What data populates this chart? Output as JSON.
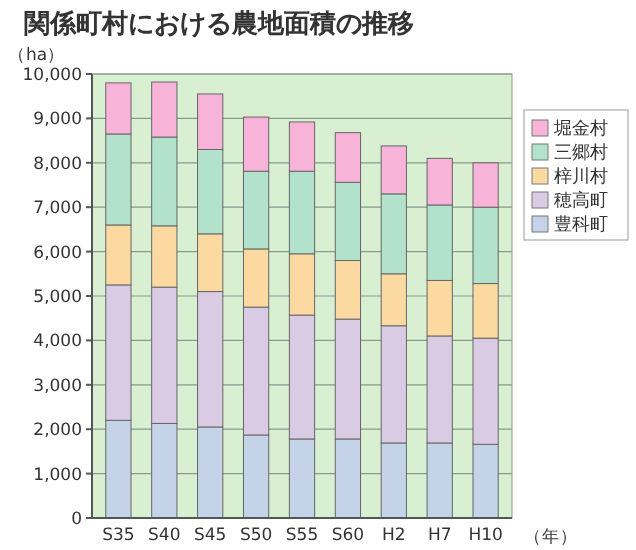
{
  "chart_data": {
    "type": "bar",
    "title": "関係町村における農地面積の推移",
    "ylabel": "（ha）",
    "xlabel": "（年）",
    "stacked": true,
    "categories": [
      "S35",
      "S40",
      "S45",
      "S50",
      "S55",
      "S60",
      "H2",
      "H7",
      "H10"
    ],
    "series": [
      {
        "name": "豊科町",
        "color": "#c5d3e8",
        "values": [
          2200,
          2130,
          2050,
          1870,
          1780,
          1780,
          1690,
          1690,
          1660
        ]
      },
      {
        "name": "穂高町",
        "color": "#dacbe4",
        "values": [
          3050,
          3070,
          3050,
          2880,
          2790,
          2700,
          2640,
          2410,
          2390
        ]
      },
      {
        "name": "梓川村",
        "color": "#fdd9a2",
        "values": [
          1350,
          1380,
          1300,
          1310,
          1380,
          1320,
          1170,
          1250,
          1230
        ]
      },
      {
        "name": "三郷村",
        "color": "#b3e2cc",
        "values": [
          2050,
          2000,
          1900,
          1750,
          1860,
          1760,
          1800,
          1700,
          1720
        ]
      },
      {
        "name": "堀金村",
        "color": "#f8b4d8",
        "values": [
          1150,
          1240,
          1250,
          1220,
          1110,
          1120,
          1080,
          1050,
          1000
        ]
      }
    ],
    "ylim": [
      0,
      10000
    ],
    "yticks": [
      {
        "value": 0,
        "label": "0"
      },
      {
        "value": 1000,
        "label": "1,000"
      },
      {
        "value": 2000,
        "label": "2,000"
      },
      {
        "value": 3000,
        "label": "3,000"
      },
      {
        "value": 4000,
        "label": "4,000"
      },
      {
        "value": 5000,
        "label": "5,000"
      },
      {
        "value": 6000,
        "label": "6,000"
      },
      {
        "value": 7000,
        "label": "7,000"
      },
      {
        "value": 8000,
        "label": "8,000"
      },
      {
        "value": 9000,
        "label": "9,000"
      },
      {
        "value": 10000,
        "label": "10,000"
      }
    ],
    "grid": "y",
    "legend": "right"
  }
}
